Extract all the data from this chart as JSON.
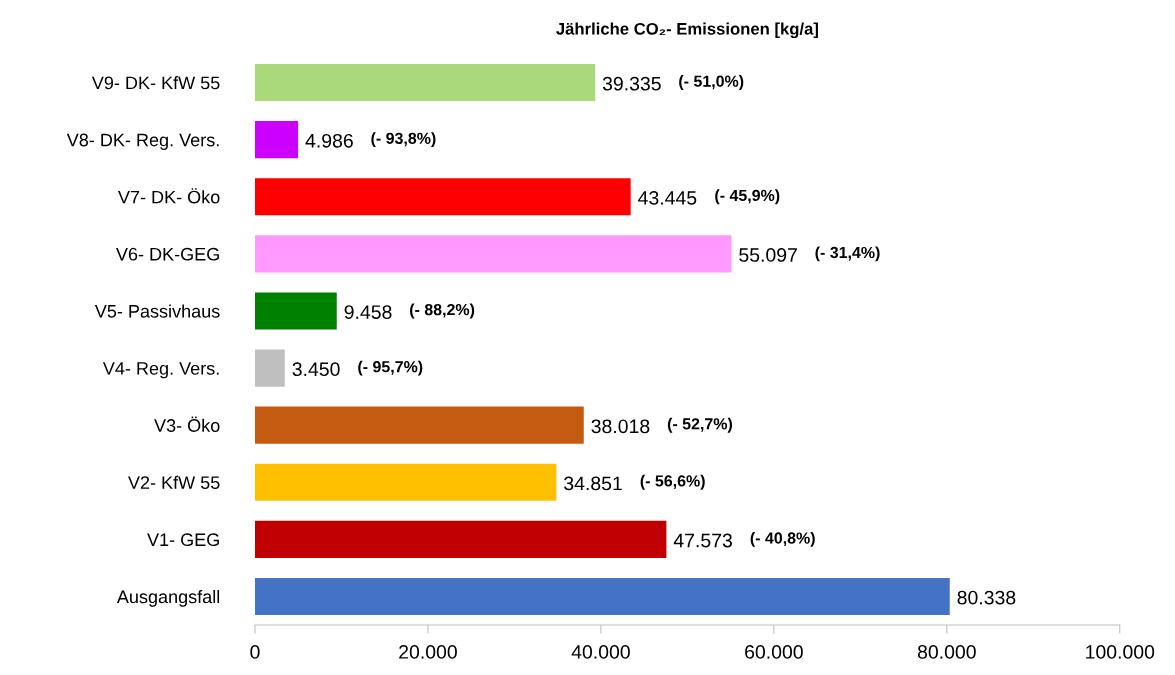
{
  "chart_data": {
    "type": "bar",
    "orientation": "horizontal",
    "title": "Jährliche CO₂- Emissionen [kg/a]",
    "categories": [
      "V9- DK- KfW 55",
      "V8- DK- Reg. Vers.",
      "V7- DK- Öko",
      "V6- DK-GEG",
      "V5- Passivhaus",
      "V4- Reg. Vers.",
      "V3- Öko",
      "V2- KfW 55",
      "V1- GEG",
      "Ausgangsfall"
    ],
    "values": [
      39335,
      4986,
      43445,
      55097,
      9458,
      3450,
      38018,
      34851,
      47573,
      80338
    ],
    "colors": [
      "#a9d97b",
      "#cc00ff",
      "#ff0000",
      "#ff99ff",
      "#008000",
      "#bfbfbf",
      "#c55a11",
      "#ffc000",
      "#c00000",
      "#4472c4"
    ],
    "value_labels": [
      "39.335",
      "4.986",
      "43.445",
      "55.097",
      "9.458",
      "3.450",
      "38.018",
      "34.851",
      "47.573",
      "80.338"
    ],
    "annotations": [
      "(- 51,0%)",
      "(- 93,8%)",
      "(- 45,9%)",
      "(- 31,4%)",
      "(- 88,2%)",
      "(- 95,7%)",
      "(- 52,7%)",
      "(- 56,6%)",
      "(- 40,8%)"
    ],
    "xlim": [
      0,
      100000
    ],
    "xticks": [
      0,
      {
        "value": 20000,
        "label": "20.000"
      },
      {
        "value": 40000,
        "label": "40.000"
      },
      {
        "value": 60000,
        "label": "60.000"
      },
      {
        "value": 80000,
        "label": "80.000"
      },
      {
        "value": 100000,
        "label": "100.000"
      }
    ],
    "grid": false
  }
}
